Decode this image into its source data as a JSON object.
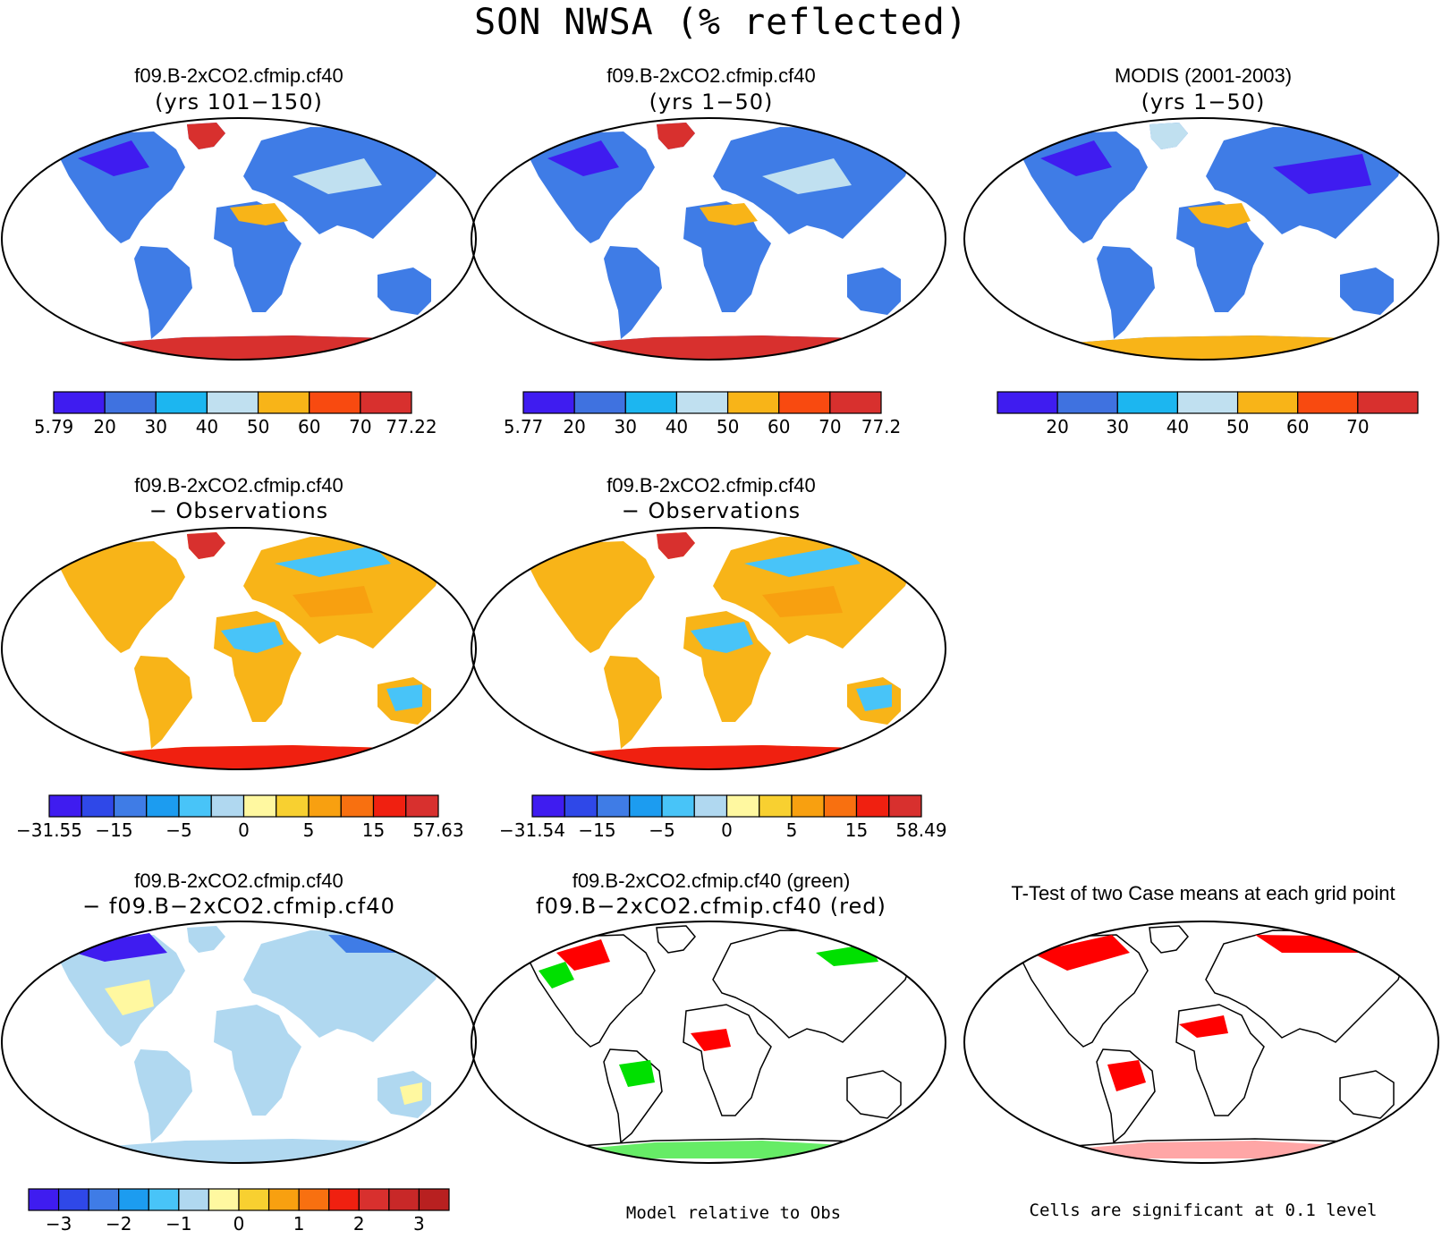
{
  "title": "SON NWSA (% reflected)",
  "colors": {
    "ocean": "#ffffff",
    "land_blue": "#3f7ce6",
    "green": "#00e000",
    "red": "#ff0000"
  },
  "panels": [
    {
      "title1": "f09.B-2xCO2.cfmip.cf40",
      "title2": "(yrs 101−150)",
      "colorbar": {
        "colors": [
          "#3f1cf0",
          "#3f72e0",
          "#1cb6f0",
          "#c0e0f0",
          "#f8b418",
          "#f84a10",
          "#d8302e"
        ],
        "labels": [
          "5.79",
          "20",
          "30",
          "40",
          "50",
          "60",
          "70",
          "77.22"
        ]
      }
    },
    {
      "title1": "f09.B-2xCO2.cfmip.cf40",
      "title2": "(yrs 1−50)",
      "colorbar": {
        "colors": [
          "#3f1cf0",
          "#3f72e0",
          "#1cb6f0",
          "#c0e0f0",
          "#f8b418",
          "#f84a10",
          "#d8302e"
        ],
        "labels": [
          "5.77",
          "20",
          "30",
          "40",
          "50",
          "60",
          "70",
          "77.2"
        ]
      }
    },
    {
      "title1": "MODIS (2001-2003)",
      "title2": "(yrs 1−50)",
      "colorbar": {
        "colors": [
          "#3f1cf0",
          "#3f72e0",
          "#1cb6f0",
          "#c0e0f0",
          "#f8b418",
          "#f84a10",
          "#d8302e"
        ],
        "labels": [
          "20",
          "30",
          "40",
          "50",
          "60",
          "70"
        ]
      }
    },
    {
      "title1": "f09.B-2xCO2.cfmip.cf40",
      "title2": "− Observations",
      "colorbar": {
        "colors": [
          "#3f1cf0",
          "#2f48e8",
          "#3f7ce6",
          "#1c9cf0",
          "#48c4f8",
          "#b0d8f0",
          "#fff8a0",
          "#f8d030",
          "#f8a010",
          "#f87010",
          "#f02010",
          "#d8302e"
        ],
        "labels": [
          "−31.55",
          "−15",
          "−5",
          "0",
          "5",
          "15",
          "57.63"
        ]
      }
    },
    {
      "title1": "f09.B-2xCO2.cfmip.cf40",
      "title2": "− Observations",
      "colorbar": {
        "colors": [
          "#3f1cf0",
          "#2f48e8",
          "#3f7ce6",
          "#1c9cf0",
          "#48c4f8",
          "#b0d8f0",
          "#fff8a0",
          "#f8d030",
          "#f8a010",
          "#f87010",
          "#f02010",
          "#d8302e"
        ],
        "labels": [
          "−31.54",
          "−15",
          "−5",
          "0",
          "5",
          "15",
          "58.49"
        ]
      }
    },
    {
      "title1": "f09.B-2xCO2.cfmip.cf40",
      "title2": "− f09.B−2xCO2.cfmip.cf40",
      "colorbar": {
        "colors": [
          "#3f1cf0",
          "#2f48e8",
          "#3f7ce6",
          "#1c9cf0",
          "#48c4f8",
          "#b0d8f0",
          "#fff8a0",
          "#f8d030",
          "#f8a010",
          "#f87010",
          "#f02010",
          "#d8302e",
          "#c82828",
          "#b82020"
        ],
        "labels": [
          "−3",
          "−2",
          "−1",
          "0",
          "1",
          "2",
          "3"
        ]
      }
    },
    {
      "title1": "f09.B-2xCO2.cfmip.cf40 (green)",
      "title2": "f09.B−2xCO2.cfmip.cf40 (red)",
      "note": "Model relative to Obs"
    },
    {
      "title1": "T-Test of two Case means at each grid point",
      "note": "Cells are significant at 0.1 level"
    }
  ],
  "chart_data": [
    {
      "type": "heatmap",
      "title": "f09.B-2xCO2.cfmip.cf40 (yrs 101−150)",
      "colorbar_range": [
        5.79,
        77.22
      ],
      "levels": [
        20,
        30,
        40,
        50,
        60,
        70
      ]
    },
    {
      "type": "heatmap",
      "title": "f09.B-2xCO2.cfmip.cf40 (yrs 1−50)",
      "colorbar_range": [
        5.77,
        77.2
      ],
      "levels": [
        20,
        30,
        40,
        50,
        60,
        70
      ]
    },
    {
      "type": "heatmap",
      "title": "MODIS (2001-2003) (yrs 1−50)",
      "levels": [
        20,
        30,
        40,
        50,
        60,
        70
      ]
    },
    {
      "type": "heatmap",
      "title": "f09.B-2xCO2.cfmip.cf40 − Observations",
      "colorbar_range": [
        -31.55,
        57.63
      ],
      "levels": [
        -15,
        -5,
        0,
        5,
        15
      ]
    },
    {
      "type": "heatmap",
      "title": "f09.B-2xCO2.cfmip.cf40 − Observations",
      "colorbar_range": [
        -31.54,
        58.49
      ],
      "levels": [
        -15,
        -5,
        0,
        5,
        15
      ]
    },
    {
      "type": "heatmap",
      "title": "f09.B-2xCO2.cfmip.cf40 − f09.B−2xCO2.cfmip.cf40",
      "levels": [
        -3,
        -2,
        -1,
        0,
        1,
        2,
        3
      ]
    },
    {
      "type": "heatmap",
      "title": "f09.B-2xCO2.cfmip.cf40 (green) f09.B−2xCO2.cfmip.cf40 (red)"
    },
    {
      "type": "heatmap",
      "title": "T-Test of two Case means at each grid point"
    }
  ]
}
